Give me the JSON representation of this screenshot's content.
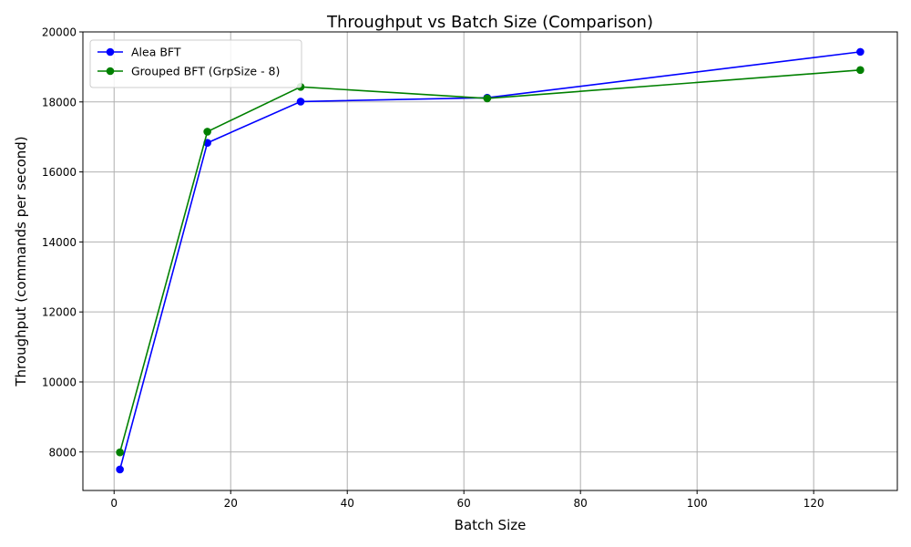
{
  "chart_data": {
    "type": "line",
    "title": "Throughput vs Batch Size (Comparison)",
    "xlabel": "Batch Size",
    "ylabel": "Throughput (commands per second)",
    "xlim": [
      -5.35,
      134.35
    ],
    "ylim": [
      6900,
      20000
    ],
    "xticks": [
      0,
      20,
      40,
      60,
      80,
      100,
      120
    ],
    "yticks": [
      8000,
      10000,
      12000,
      14000,
      16000,
      18000,
      20000
    ],
    "grid": true,
    "legend_position": "top-left",
    "series": [
      {
        "name": "Alea BFT",
        "color": "#0000ff",
        "x": [
          1,
          16,
          32,
          64,
          128
        ],
        "y": [
          7500,
          16830,
          18010,
          18120,
          19430
        ]
      },
      {
        "name": "Grouped BFT (GrpSize - 8)",
        "color": "#008000",
        "x": [
          1,
          16,
          32,
          64,
          128
        ],
        "y": [
          7990,
          17150,
          18430,
          18100,
          18910
        ]
      }
    ]
  }
}
